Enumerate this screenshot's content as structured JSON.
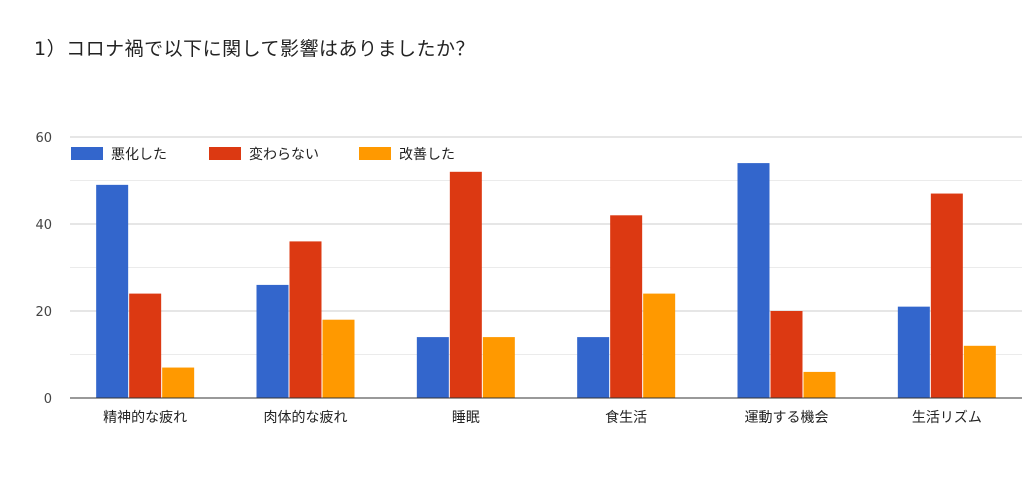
{
  "title": "1）コロナ禍で以下に関して影響はありましたか？",
  "chart_data": {
    "type": "bar",
    "categories": [
      "精神的な疲れ",
      "肉体的な疲れ",
      "睡眠",
      "食生活",
      "運動する機会",
      "生活リズム"
    ],
    "series": [
      {
        "name": "悪化した",
        "color": "#3366cc",
        "values": [
          49,
          26,
          14,
          14,
          54,
          21
        ]
      },
      {
        "name": "変わらない",
        "color": "#dc3912",
        "values": [
          24,
          36,
          52,
          42,
          20,
          47
        ]
      },
      {
        "name": "改善した",
        "color": "#ff9900",
        "values": [
          7,
          18,
          14,
          24,
          6,
          12
        ]
      }
    ],
    "ylim": [
      0,
      60
    ],
    "yticks": [
      0,
      20,
      40,
      60
    ],
    "grid": true,
    "legend_position": "top-left"
  }
}
